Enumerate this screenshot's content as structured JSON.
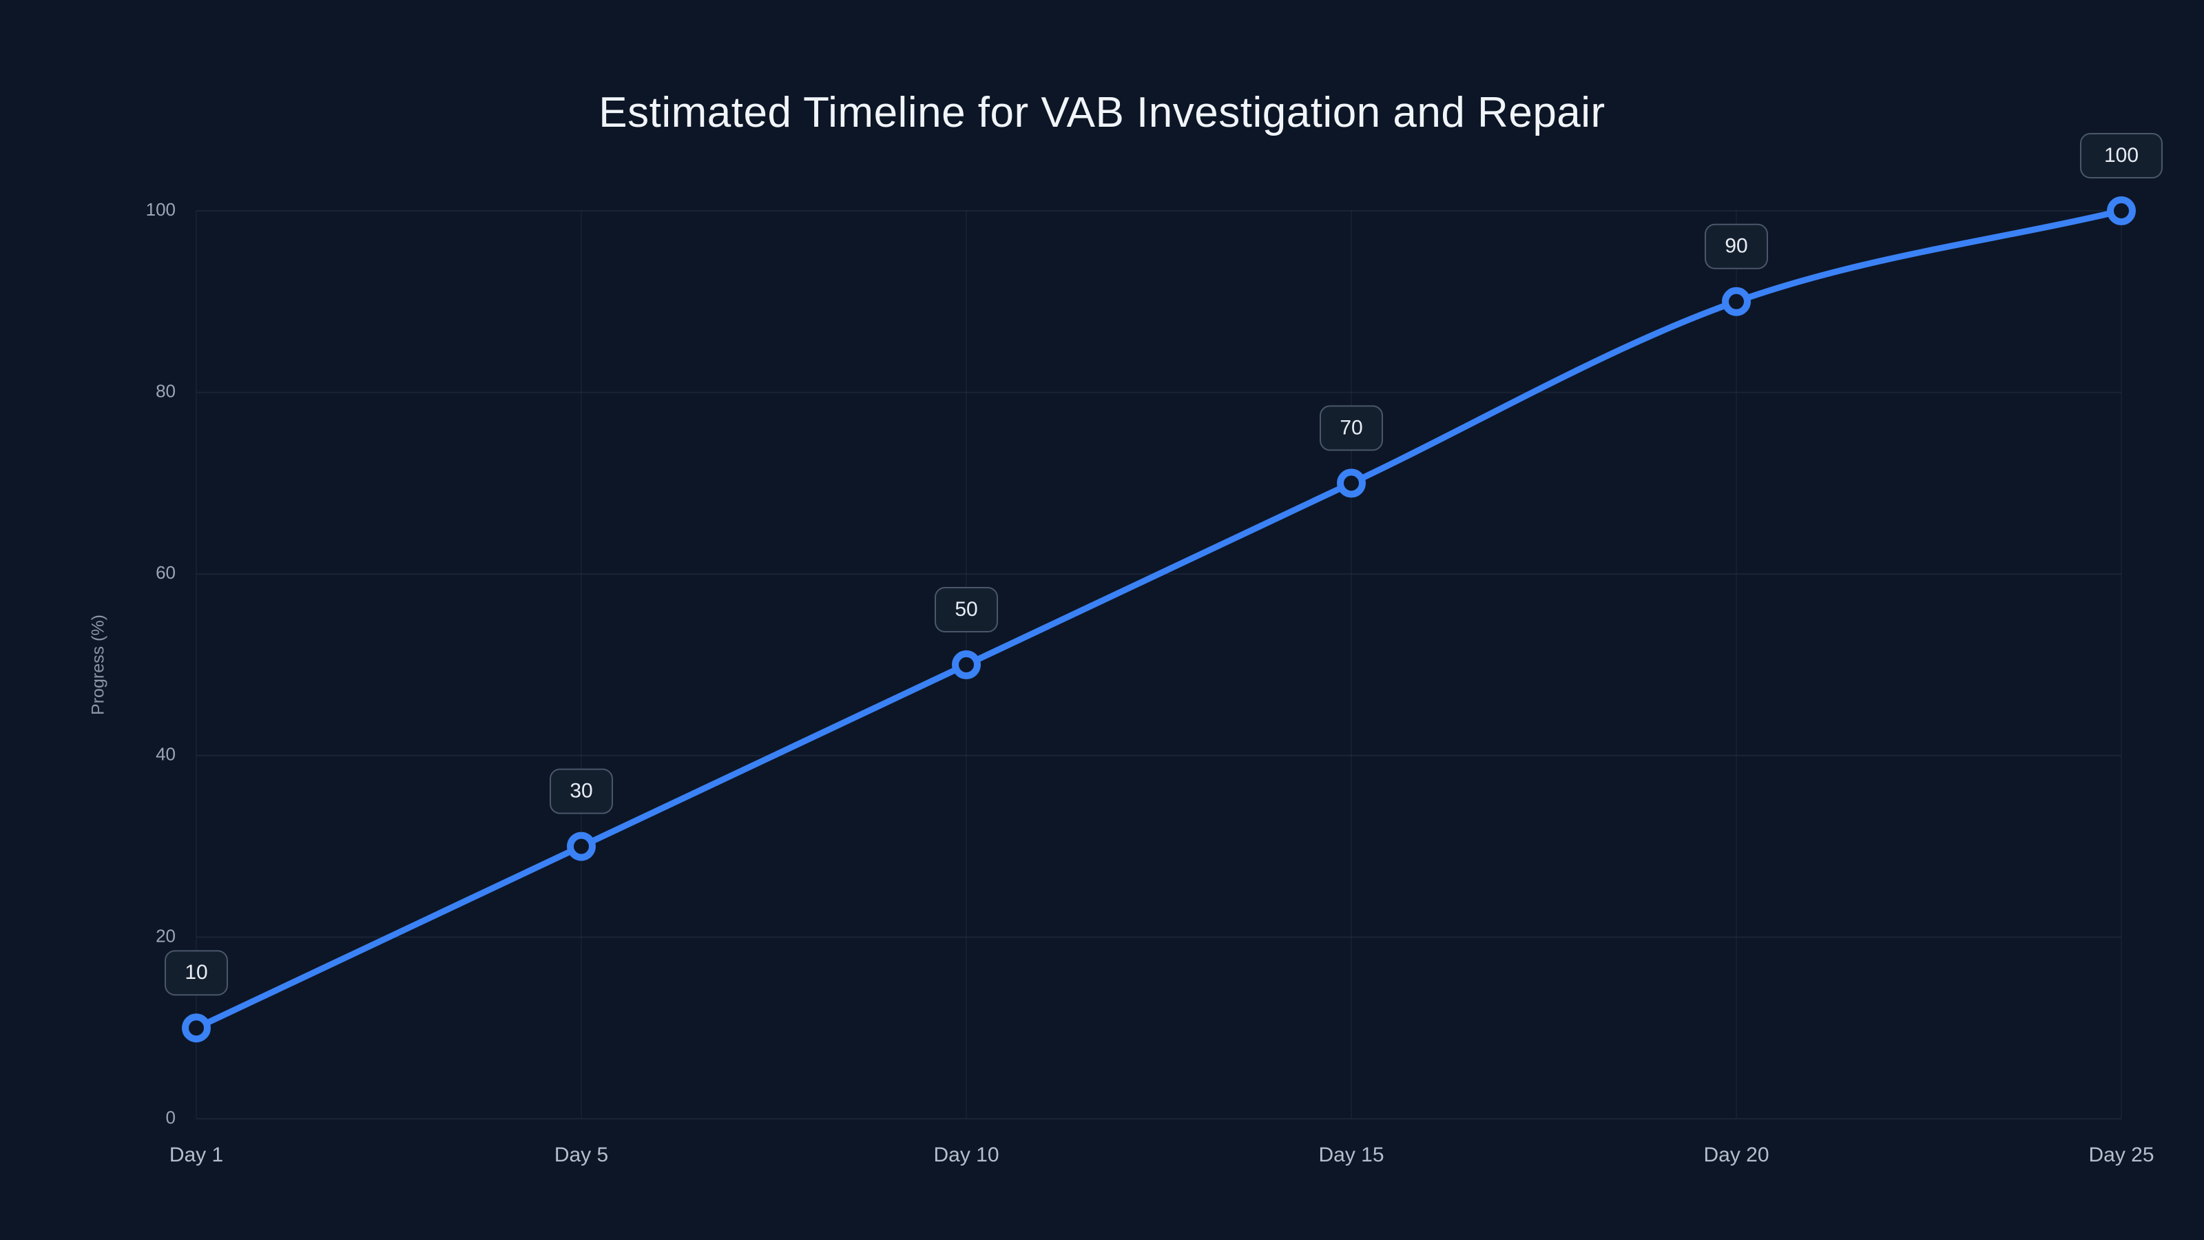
{
  "chart_data": {
    "type": "line",
    "title": "Estimated Timeline for VAB Investigation and Repair",
    "categories": [
      "Day 1",
      "Day 5",
      "Day 10",
      "Day 15",
      "Day 20",
      "Day 25"
    ],
    "values": [
      10,
      30,
      50,
      70,
      90,
      100
    ],
    "point_labels": [
      "10",
      "30",
      "50",
      "70",
      "90",
      "100"
    ],
    "xlabel": "",
    "ylabel": "Progress (%)",
    "ylim": [
      0,
      100
    ],
    "yticks": [
      0,
      20,
      40,
      60,
      80,
      100
    ],
    "grid": true,
    "legend": false,
    "colors": {
      "background": "#0d1626",
      "line": "#3b82f6",
      "marker_fill": "#0d1626",
      "marker_stroke": "#3b82f6",
      "grid": "#263244",
      "tick_text": "#9aa5b5",
      "x_tick_text": "#b4bfcd",
      "title_text": "#f1f5f9",
      "badge_bg": "#141f2e",
      "badge_border": "#4a576b",
      "badge_text": "#e8edf4"
    }
  }
}
